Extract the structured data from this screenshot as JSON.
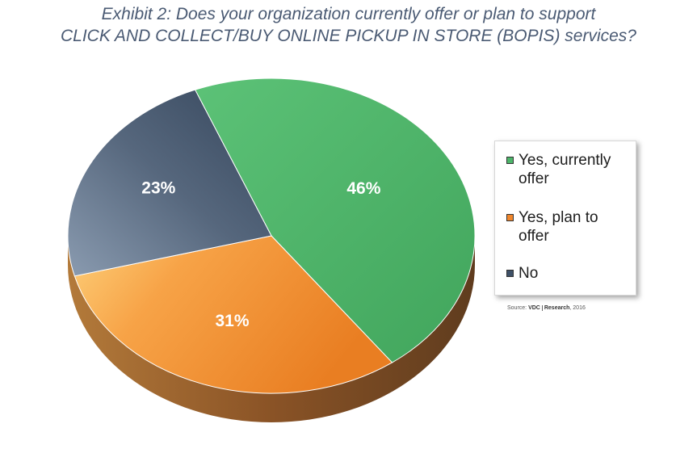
{
  "title": {
    "line1": "Exhibit 2: Does your organization currently offer or plan to support",
    "line2": "CLICK AND COLLECT/BUY ONLINE PICKUP IN STORE (BOPIS) services?"
  },
  "chart_data": {
    "type": "pie",
    "slices": [
      {
        "name": "Yes, currently offer",
        "value": 46,
        "label": "46%",
        "color": "#4db56a"
      },
      {
        "name": "Yes, plan to offer",
        "value": 31,
        "label": "31%",
        "color": "#f0862c"
      },
      {
        "name": "No",
        "value": 23,
        "label": "23%",
        "color": "#3f5168"
      }
    ],
    "legend_position": "right"
  },
  "legend": {
    "items": [
      {
        "label": "Yes, currently offer",
        "color": "#4db56a"
      },
      {
        "label": "Yes, plan to offer",
        "color": "#f0862c"
      },
      {
        "label": "No",
        "color": "#3f5168"
      }
    ]
  },
  "source": {
    "prefix": "Source:",
    "brand_a": "VDC",
    "brand_b": "Research",
    "year": ", 2016"
  }
}
